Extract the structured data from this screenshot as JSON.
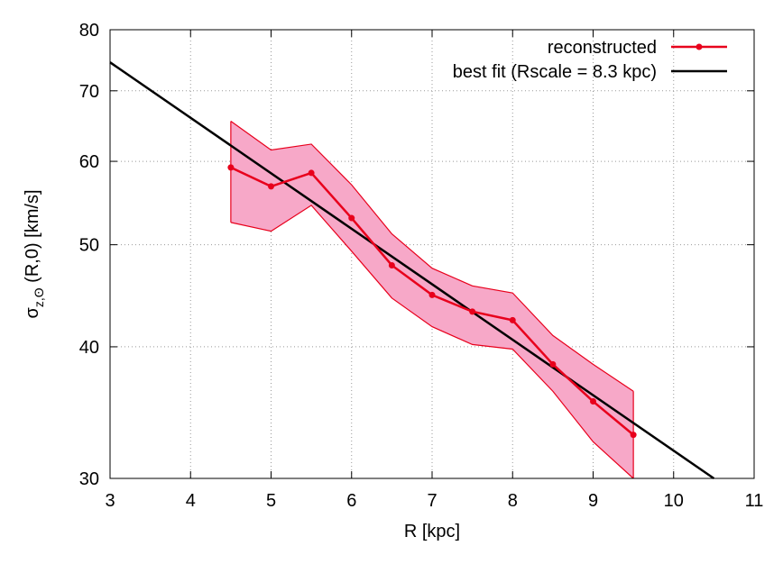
{
  "chart_data": {
    "type": "line",
    "title": "",
    "xlabel": "R [kpc]",
    "ylabel": {
      "sigma": "σ",
      "sub": "z,ʘ",
      "rest": " (R,0) [km/s]"
    },
    "xlim": [
      3,
      11
    ],
    "ylim": [
      30,
      80
    ],
    "yscale": "log",
    "x_ticks": [
      "3",
      "4",
      "5",
      "6",
      "7",
      "8",
      "9",
      "10",
      "11"
    ],
    "y_ticks": [
      "30",
      "40",
      "50",
      "60",
      "70",
      "80"
    ],
    "grid": true,
    "legend_position": "top-right",
    "series": [
      {
        "name": "reconstructed",
        "color": "#e8001c",
        "x": [
          4.5,
          5.0,
          5.5,
          6.0,
          6.5,
          7.0,
          7.5,
          8.0,
          8.5,
          9.0,
          9.5
        ],
        "y": [
          59.2,
          56.8,
          58.5,
          53.0,
          47.8,
          44.8,
          43.2,
          42.4,
          38.5,
          35.5,
          33.0
        ]
      },
      {
        "name": "best fit (Rscale = 8.3 kpc)",
        "color": "#000000",
        "x": [
          3.0,
          10.5
        ],
        "y": [
          74.5,
          30.0
        ]
      }
    ],
    "band": {
      "fill": "#f7a8c8",
      "stroke": "#e8001c",
      "x": [
        4.5,
        5.0,
        5.5,
        6.0,
        6.5,
        7.0,
        7.5,
        8.0,
        8.5,
        9.0,
        9.5
      ],
      "upper": [
        65.5,
        61.5,
        62.3,
        57.0,
        51.2,
        47.5,
        45.7,
        45.0,
        41.0,
        38.5,
        36.3
      ],
      "lower": [
        52.5,
        51.5,
        54.5,
        49.3,
        44.5,
        41.8,
        40.2,
        39.8,
        36.3,
        32.5,
        30.0
      ]
    }
  }
}
